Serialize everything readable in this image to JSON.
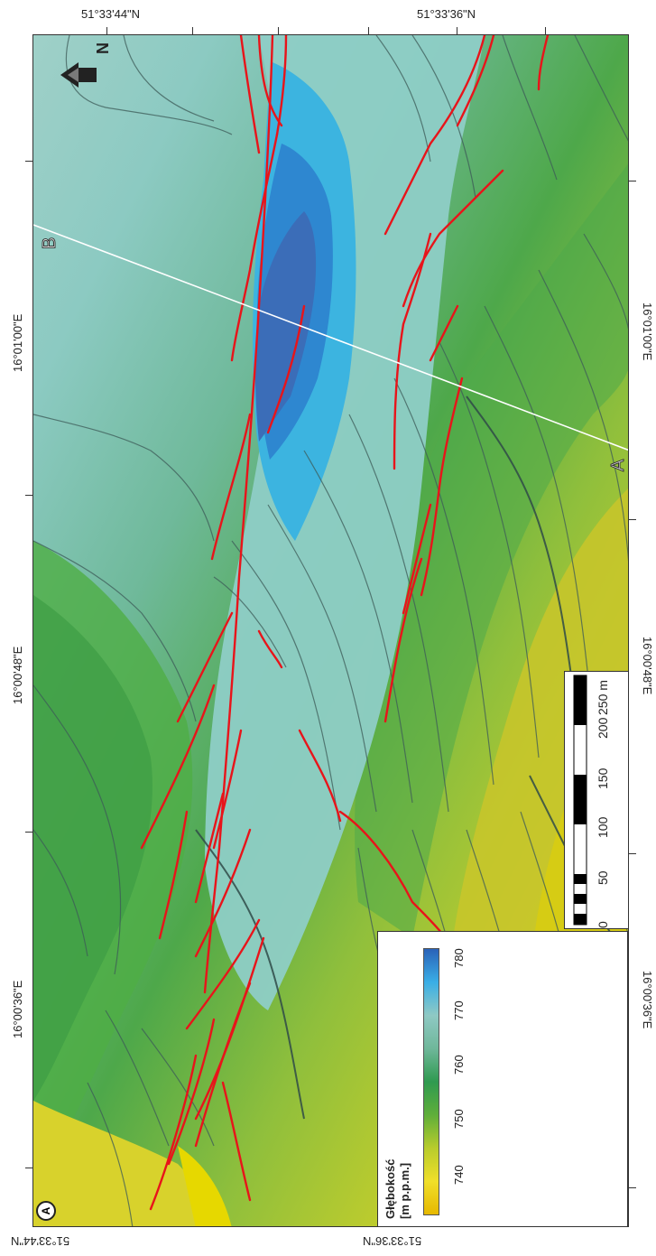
{
  "coords": {
    "top_lat_1": "51°33'44\"N",
    "top_lat_2": "51°33'36\"N",
    "bottom_lat_1": "51°33'44\"N",
    "bottom_lat_2": "51°33'36\"N",
    "left_lon_1": "16°01'00\"E",
    "left_lon_2": "16°00'48\"E",
    "left_lon_3": "16°00'36\"E",
    "right_lon_1": "16°01'00\"E",
    "right_lon_2": "16°00'48\"E",
    "right_lon_3": "16°00'36\"E"
  },
  "profile": {
    "start": "A",
    "end": "B"
  },
  "panel_label": "A",
  "north_label": "N",
  "legend": {
    "title_1": "Głębokość",
    "title_2": "[m p.p.m.]",
    "ticks": [
      "740",
      "750",
      "760",
      "770",
      "780"
    ],
    "colors": [
      "#e6b800",
      "#f0df2a",
      "#b8cc2c",
      "#5fae3a",
      "#2f9a50",
      "#6fb79a",
      "#8fc9c4",
      "#3aaee6",
      "#2a62b8"
    ]
  },
  "scale": {
    "ticks": [
      "0",
      "50",
      "100",
      "150",
      "200",
      "250 m"
    ]
  },
  "colors": {
    "fault": "#e8141a",
    "contour": "#3d5b58",
    "profile_line": "#ffffff"
  }
}
